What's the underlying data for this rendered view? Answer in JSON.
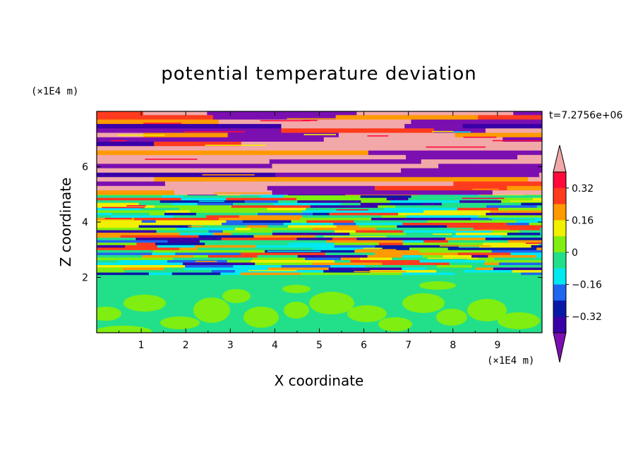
{
  "chart_data": {
    "type": "heatmap",
    "title": "potential temperature deviation",
    "xlabel": "X coordinate",
    "ylabel": "Z coordinate",
    "x_unit": "(×1E4 m)",
    "y_unit": "(×1E4 m)",
    "time_label": "t=7.2756e+06",
    "xlim": [
      0,
      10
    ],
    "ylim": [
      0,
      8
    ],
    "x_ticks": [
      "1",
      "2",
      "3",
      "4",
      "5",
      "6",
      "7",
      "8",
      "9"
    ],
    "y_ticks": [
      "2",
      "4",
      "6"
    ],
    "colorbar": {
      "labels": [
        "0.32",
        "0.16",
        "0",
        "−0.16",
        "−0.32"
      ],
      "label_values": [
        0.32,
        0.16,
        0,
        -0.16,
        -0.32
      ],
      "levels": [
        -0.4,
        -0.32,
        -0.24,
        -0.16,
        -0.08,
        0,
        0.08,
        0.16,
        0.24,
        0.32,
        0.4
      ],
      "colors": [
        "#7b0fb0",
        "#3a00a8",
        "#0a18a8",
        "#1f66f0",
        "#00e8f0",
        "#22e08a",
        "#80ee10",
        "#f0f000",
        "#ff9a00",
        "#ff3b1e",
        "#ff0a3a",
        "#f2a8a8"
      ]
    },
    "layers": [
      {
        "z": [
          0,
          2.1
        ],
        "description_value": 0.04
      },
      {
        "z": [
          2.1,
          5.0
        ],
        "description_value": 0
      },
      {
        "z": [
          5.0,
          8.0
        ],
        "description_value": 0
      }
    ]
  }
}
